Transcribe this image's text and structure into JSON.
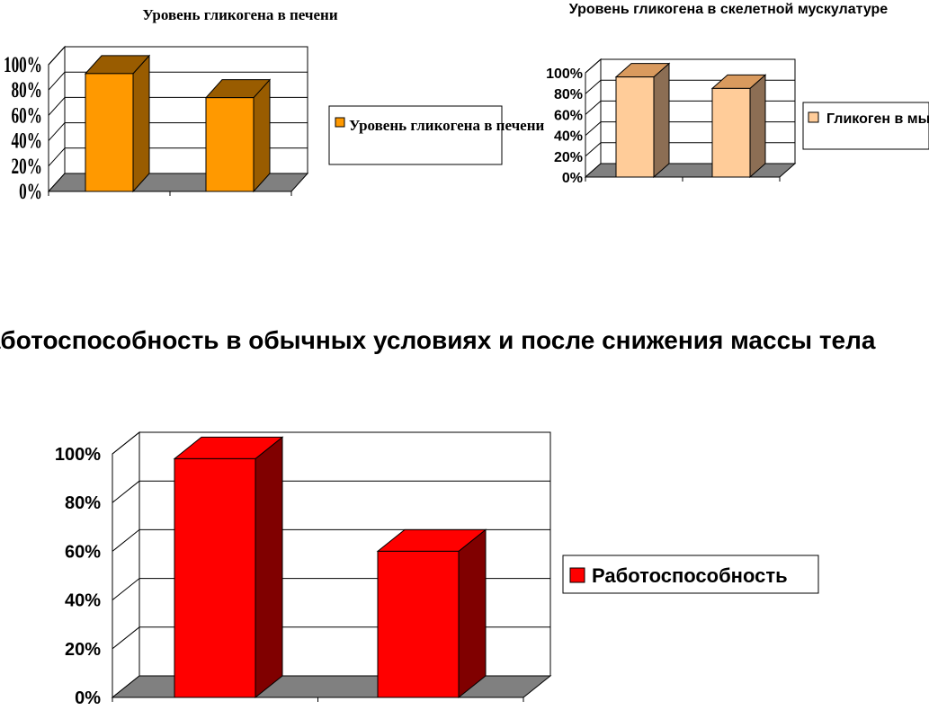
{
  "chart_data": [
    {
      "type": "bar",
      "title": "Уровень гликогена в печени",
      "categories": [
        "",
        ""
      ],
      "series": [
        {
          "name": "Уровень гликогена в печени",
          "values": [
            93,
            74
          ],
          "color": "#FF9900"
        }
      ],
      "yticks": [
        "0%",
        "20%",
        "40%",
        "60%",
        "80%",
        "100%"
      ],
      "ylim": [
        0,
        100
      ],
      "grid": true,
      "legend_position": "right",
      "three_d": true
    },
    {
      "type": "bar",
      "title": "Уровень гликогена в скелетной мускулатуре",
      "categories": [
        "",
        ""
      ],
      "series": [
        {
          "name": "Гликоген в мышцах",
          "values": [
            96,
            85
          ],
          "color": "#FFCC99"
        }
      ],
      "yticks": [
        "0%",
        "20%",
        "40%",
        "60%",
        "80%",
        "100%"
      ],
      "ylim": [
        0,
        100
      ],
      "grid": true,
      "legend_position": "right",
      "three_d": true
    },
    {
      "type": "bar",
      "title": "Работоспособность в обычных условиях и после снижения массы тела",
      "categories": [
        "",
        ""
      ],
      "series": [
        {
          "name": "Работоспособность",
          "values": [
            98,
            60
          ],
          "color": "#FF0000"
        }
      ],
      "yticks": [
        "0%",
        "20%",
        "40%",
        "60%",
        "80%",
        "100%"
      ],
      "ylim": [
        0,
        100
      ],
      "grid": true,
      "legend_position": "right",
      "three_d": true
    }
  ]
}
